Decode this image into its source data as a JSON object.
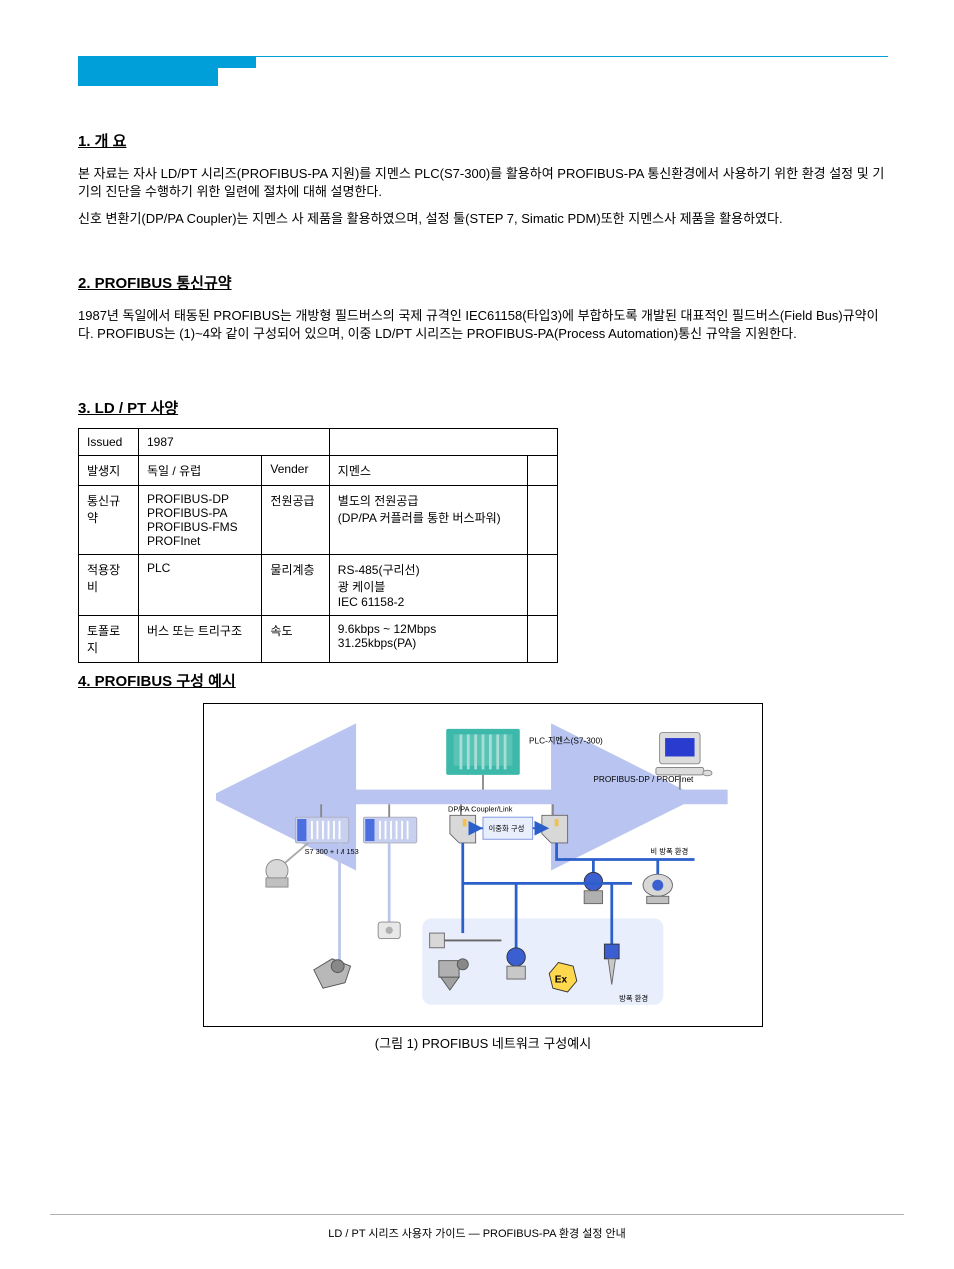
{
  "header": {
    "accent_color": "#009fda"
  },
  "sections": {
    "s1": {
      "title": "1. 개 요",
      "p1": "본 자료는 자사 LD/PT 시리즈(PROFIBUS-PA 지원)를 지멘스 PLC(S7-300)를 활용하여 PROFIBUS-PA 통신환경에서 사용하기 위한 환경 설정 및 기기의 진단을 수행하기 위한 일련에 절차에 대해 설명한다.",
      "p2": "신호 변환기(DP/PA Coupler)는 지멘스 사 제품을 활용하였으며, 설정 툴(STEP 7, Simatic PDM)또한 지멘스사 제품을 활용하였다."
    },
    "s2": {
      "title": "2. PROFIBUS 통신규약",
      "p1": "1987년 독일에서 태동된 PROFIBUS는 개방형 필드버스의 국제 규격인 IEC61158(타입3)에 부합하도록 개발된 대표적인 필드버스(Field Bus)규약이다. PROFIBUS는 (1)~4와 같이 구성되어 있으며, 이중 LD/PT 시리즈는 PROFIBUS-PA(Process Automation)통신 규약을 지원한다."
    },
    "s3": {
      "title": "3. LD / PT 사양",
      "table": {
        "rows": [
          [
            "Issued",
            "1987",
            "",
            "",
            ""
          ],
          [
            "발생지",
            "독일 / 유럽",
            "Vender",
            "지멘스",
            ""
          ],
          [
            "통신규약",
            "PROFIBUS-DP\nPROFIBUS-PA\nPROFIBUS-FMS\nPROFInet",
            "전원공급",
            "별도의 전원공급\n(DP/PA 커플러를 통한 버스파워)",
            ""
          ],
          [
            "적용장비",
            "PLC",
            "물리계층",
            "RS-485(구리선)\n광 케이블\nIEC 61158-2",
            ""
          ],
          [
            "토폴로지",
            "버스 또는 트리구조",
            "속도",
            "9.6kbps ~ 12Mbps\n31.25kbps(PA)",
            ""
          ]
        ]
      }
    },
    "s4": {
      "title": "4. PROFIBUS 구성 예시",
      "caption": "(그림 1) PROFIBUS 네트워크 구성예시",
      "diagram": {
        "bus_label": "PROFIBUS-DP / PROFInet",
        "bus_color": "#b9c5f0",
        "pa_color": "#2b5fc9",
        "plc_label": "PLC-지멘스(S7-300)",
        "plc_body": "#3cb9aa",
        "plc_slot": "#a9ded6",
        "pc_body": "#dcdcdc",
        "pc_screen": "#2a3bd0",
        "bridge_label": "S7 300 + IM 153",
        "bridge_body": "#c7d0ee",
        "bridge_front": "#4b6fe0",
        "coupler_label": "DP/PA Coupler/Link",
        "coupler_fill": "#d8d8d8",
        "redundancy_label": "이중화 구성",
        "redundancy_box": "#e9eefc",
        "nonex_label": "비 방폭 환경",
        "tx_body": "#3b5fd0",
        "tx_cap": "#b0b0b0",
        "ex_fill": "#e9eefc",
        "ex_label": "방폭 환경",
        "ex_badge_fill": "#ffd84d",
        "ex_badge_text": "Ex",
        "border": "#000000"
      }
    }
  },
  "footer": {
    "text": "LD / PT 시리즈 사용자 가이드 — PROFIBUS-PA 환경 설정 안내"
  }
}
